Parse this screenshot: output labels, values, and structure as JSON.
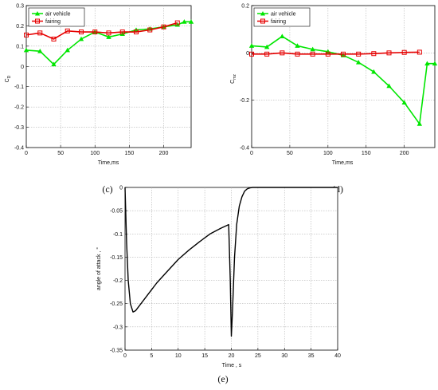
{
  "colors": {
    "air_vehicle": "#00e600",
    "fairing": "#e60000",
    "curve": "#000000",
    "grid": "#b5b5b5",
    "axes": "#000000"
  },
  "chart_data": [
    {
      "id": "c",
      "type": "line",
      "panel_label": "(c)",
      "title": "",
      "xlabel": "Time,ms",
      "ylabel_main": "C",
      "ylabel_sub": "D",
      "xlim": [
        0,
        240
      ],
      "ylim": [
        -0.4,
        0.3
      ],
      "xticks": [
        0,
        50,
        100,
        150,
        200
      ],
      "yticks": [
        -0.4,
        -0.3,
        -0.2,
        -0.1,
        0,
        0.1,
        0.2,
        0.3
      ],
      "ytick_labels": [
        "-0.4",
        "-0.3",
        "-0.2",
        "-0.1",
        "0",
        "0.1",
        "0.2",
        "0.3"
      ],
      "grid": true,
      "legend": "top-left",
      "series": [
        {
          "name": "air vehicle",
          "color": "#00e600",
          "marker": "triangle",
          "x": [
            0,
            20,
            40,
            60,
            80,
            100,
            120,
            140,
            160,
            180,
            200,
            220,
            230,
            240
          ],
          "y": [
            0.08,
            0.075,
            0.01,
            0.08,
            0.135,
            0.17,
            0.145,
            0.16,
            0.18,
            0.185,
            0.195,
            0.205,
            0.22,
            0.22
          ]
        },
        {
          "name": "fairing",
          "color": "#e60000",
          "marker": "square",
          "x": [
            0,
            20,
            40,
            60,
            80,
            100,
            120,
            140,
            160,
            180,
            200,
            220
          ],
          "y": [
            0.155,
            0.165,
            0.135,
            0.175,
            0.17,
            0.17,
            0.165,
            0.17,
            0.17,
            0.18,
            0.195,
            0.215
          ]
        }
      ]
    },
    {
      "id": "d",
      "type": "line",
      "panel_label": "(d)",
      "title": "",
      "xlabel": "Time,ms",
      "ylabel_main": "C",
      "ylabel_sub": "mz",
      "xlim": [
        0,
        240
      ],
      "ylim": [
        -0.4,
        0.2
      ],
      "xticks": [
        0,
        50,
        100,
        150,
        200
      ],
      "yticks": [
        -0.4,
        -0.2,
        0,
        0.2
      ],
      "ytick_labels": [
        "-0.4",
        "-0.2",
        "0",
        "0.2"
      ],
      "grid": true,
      "legend": "top-left",
      "series": [
        {
          "name": "air vehicle",
          "color": "#00e600",
          "marker": "triangle",
          "x": [
            0,
            20,
            40,
            60,
            80,
            100,
            120,
            140,
            160,
            180,
            200,
            220,
            230,
            240
          ],
          "y": [
            0.03,
            0.025,
            0.07,
            0.03,
            0.015,
            0.005,
            -0.01,
            -0.04,
            -0.08,
            -0.14,
            -0.21,
            -0.3,
            -0.045,
            -0.045
          ]
        },
        {
          "name": "fairing",
          "color": "#e60000",
          "marker": "square",
          "x": [
            0,
            20,
            40,
            60,
            80,
            100,
            120,
            140,
            160,
            180,
            200,
            220
          ],
          "y": [
            -0.005,
            -0.005,
            0,
            -0.005,
            -0.005,
            -0.005,
            -0.005,
            -0.005,
            -0.003,
            0,
            0.002,
            0.003
          ]
        }
      ]
    },
    {
      "id": "e",
      "type": "line",
      "panel_label": "(e)",
      "title": "",
      "xlabel": "Time , s",
      "ylabel_main": "angle of attack , °",
      "ylabel_sub": "",
      "xlim": [
        0,
        40
      ],
      "ylim": [
        -0.35,
        0
      ],
      "xticks": [
        0,
        5,
        10,
        15,
        20,
        25,
        30,
        35,
        40
      ],
      "yticks": [
        -0.35,
        -0.3,
        -0.25,
        -0.2,
        -0.15,
        -0.1,
        -0.05,
        0
      ],
      "ytick_labels": [
        "-0.35",
        "-0.3",
        "-0.25",
        "-0.2",
        "-0.15",
        "-0.1",
        "-0.05",
        "0"
      ],
      "grid": true,
      "legend": "none",
      "series": [
        {
          "name": "",
          "color": "#000000",
          "marker": "none",
          "x": [
            0,
            0.3,
            0.6,
            1.0,
            1.5,
            2.0,
            3,
            4,
            5,
            6,
            8,
            10,
            12,
            14,
            16,
            18,
            19.5,
            19.8,
            20.0,
            20.2,
            20.6,
            21.0,
            21.5,
            22.0,
            22.5,
            23.0,
            23.5,
            24.0,
            25.0,
            26.0,
            40
          ],
          "y": [
            0,
            -0.12,
            -0.2,
            -0.25,
            -0.268,
            -0.265,
            -0.25,
            -0.235,
            -0.22,
            -0.205,
            -0.18,
            -0.155,
            -0.135,
            -0.117,
            -0.1,
            -0.088,
            -0.08,
            -0.2,
            -0.32,
            -0.27,
            -0.15,
            -0.08,
            -0.04,
            -0.02,
            -0.008,
            -0.003,
            -0.001,
            0,
            0,
            0,
            0
          ]
        }
      ]
    }
  ]
}
